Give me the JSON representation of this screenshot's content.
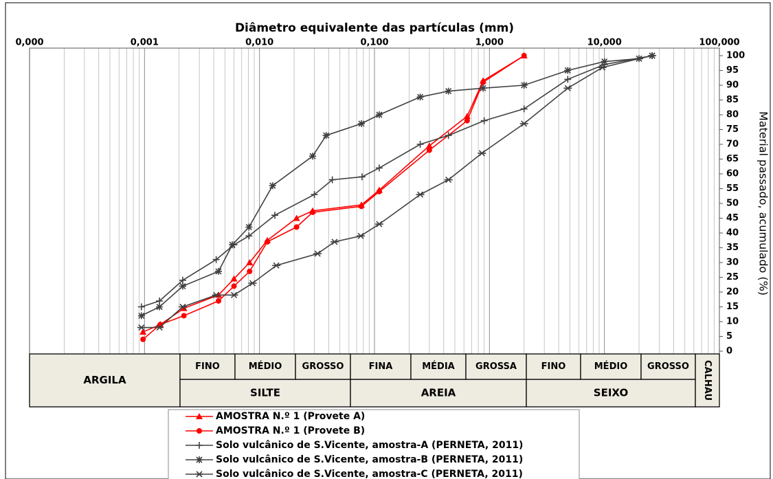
{
  "chart_data": {
    "type": "line",
    "xscale": "log",
    "xlabel": "Diâmetro equivalente das partículas (mm)",
    "ylabel": "Material passado, acumulado (%)",
    "xlim": [
      0.0001,
      100
    ],
    "xticks": [
      {
        "value": 0.0001,
        "label": "0,000"
      },
      {
        "value": 0.001,
        "label": "0,001"
      },
      {
        "value": 0.01,
        "label": "0,010"
      },
      {
        "value": 0.1,
        "label": "0,100"
      },
      {
        "value": 1,
        "label": "1,000"
      },
      {
        "value": 10,
        "label": "10,000"
      },
      {
        "value": 100,
        "label": "100,000"
      }
    ],
    "ylim": [
      0,
      100
    ],
    "yticks": [
      0,
      5,
      10,
      15,
      20,
      25,
      30,
      35,
      40,
      45,
      50,
      55,
      60,
      65,
      70,
      75,
      80,
      85,
      90,
      95,
      100
    ],
    "grid": "x-minor",
    "series": [
      {
        "name": "AMOSTRA N.º 1 (Provete A)",
        "color": "#ff0000",
        "marker": "triangle",
        "x": [
          0.00097,
          0.00137,
          0.0022,
          0.0044,
          0.006,
          0.0082,
          0.0117,
          0.021,
          0.029,
          0.077,
          0.11,
          0.3,
          0.64,
          0.88,
          2.0
        ],
        "values": [
          6.5,
          9,
          14.5,
          19,
          24.5,
          30,
          37.5,
          45,
          47.5,
          49.5,
          54.5,
          69.5,
          79.5,
          91.5,
          100
        ]
      },
      {
        "name": "AMOSTRA N.º 1 (Provete B)",
        "color": "#ff0000",
        "marker": "circle",
        "x": [
          0.00097,
          0.00137,
          0.0022,
          0.0044,
          0.006,
          0.0082,
          0.0117,
          0.021,
          0.029,
          0.077,
          0.11,
          0.3,
          0.64,
          0.88,
          2.0
        ],
        "values": [
          4,
          9,
          12,
          17,
          22,
          27,
          37,
          42,
          47,
          49,
          54,
          68,
          78,
          91,
          100
        ]
      },
      {
        "name": "Solo vulcânico de S.Vicente, amostra-A (PERNETA, 2011)",
        "color": "#404040",
        "marker": "plus",
        "x": [
          0.00094,
          0.00135,
          0.00215,
          0.0042,
          0.006,
          0.0081,
          0.0136,
          0.03,
          0.043,
          0.078,
          0.11,
          0.25,
          0.44,
          0.9,
          2.0,
          4.8,
          10,
          26
        ],
        "values": [
          15,
          17,
          24,
          31,
          36,
          39,
          46,
          53,
          58,
          59,
          62,
          70,
          73,
          78,
          82,
          92,
          97,
          100
        ]
      },
      {
        "name": "Solo vulcânico de S.Vicente, amostra-B (PERNETA, 2011)",
        "color": "#404040",
        "marker": "star",
        "x": [
          0.00094,
          0.00135,
          0.00215,
          0.0044,
          0.0058,
          0.0081,
          0.013,
          0.029,
          0.038,
          0.077,
          0.11,
          0.25,
          0.44,
          0.88,
          2.0,
          4.8,
          10,
          20,
          26
        ],
        "values": [
          12,
          15,
          22,
          27,
          36,
          42,
          56,
          66,
          73,
          77,
          80,
          86,
          88,
          89,
          90,
          95,
          98,
          99,
          100
        ]
      },
      {
        "name": "Solo vulcânico de S.Vicente, amostra-C (PERNETA, 2011)",
        "color": "#404040",
        "marker": "xbar",
        "x": [
          0.00094,
          0.00135,
          0.00215,
          0.0042,
          0.006,
          0.0087,
          0.014,
          0.032,
          0.045,
          0.076,
          0.11,
          0.25,
          0.44,
          0.86,
          2.0,
          4.8,
          9.6,
          20,
          26
        ],
        "values": [
          8,
          8,
          15,
          19,
          19,
          23,
          29,
          33,
          37,
          39,
          43,
          53,
          58,
          67,
          77,
          89,
          96,
          99,
          100
        ]
      }
    ]
  },
  "classification": {
    "clay": "ARGILA",
    "boulder": "CALHAU",
    "groups": [
      {
        "name": "SILTE",
        "parts": [
          "FINO",
          "MÉDIO",
          "GROSSO"
        ]
      },
      {
        "name": "AREIA",
        "parts": [
          "FINA",
          "MÉDIA",
          "GROSSA"
        ]
      },
      {
        "name": "SEIXO",
        "parts": [
          "FINO",
          "MÉDIO",
          "GROSSO"
        ]
      }
    ]
  }
}
